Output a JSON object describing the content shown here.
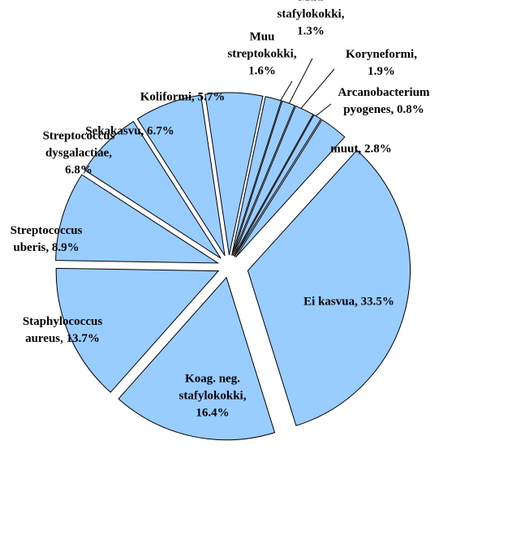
{
  "chart_data": {
    "type": "pie",
    "color": "#99ccff",
    "labels": [
      [
        "Muu",
        "streptokokki,",
        "1.6%"
      ],
      [
        "Muu",
        "stafylokokki,",
        "1.3%"
      ],
      [
        "Koryneformi,",
        "1.9%"
      ],
      [
        "Arcanobacterium",
        "pyogenes, 0.8%"
      ],
      [
        "muut, 2.8%"
      ],
      [
        "Ei kasvua, 33.5%"
      ],
      [
        "Koag. neg.",
        "stafylokokki,",
        "16.4%"
      ],
      [
        "Staphylococcus",
        "aureus, 13.7%"
      ],
      [
        "Streptococcus",
        "uberis, 8.9%"
      ],
      [
        "Streptococcus",
        "dysgalactiae,",
        "6.8%"
      ],
      [
        "Sekakasvu, 6.7%"
      ],
      [
        "Koliformi, 5.7%"
      ]
    ],
    "values": [
      1.6,
      1.3,
      1.9,
      0.8,
      2.8,
      33.5,
      16.4,
      13.7,
      8.9,
      6.8,
      6.7,
      5.7
    ]
  }
}
